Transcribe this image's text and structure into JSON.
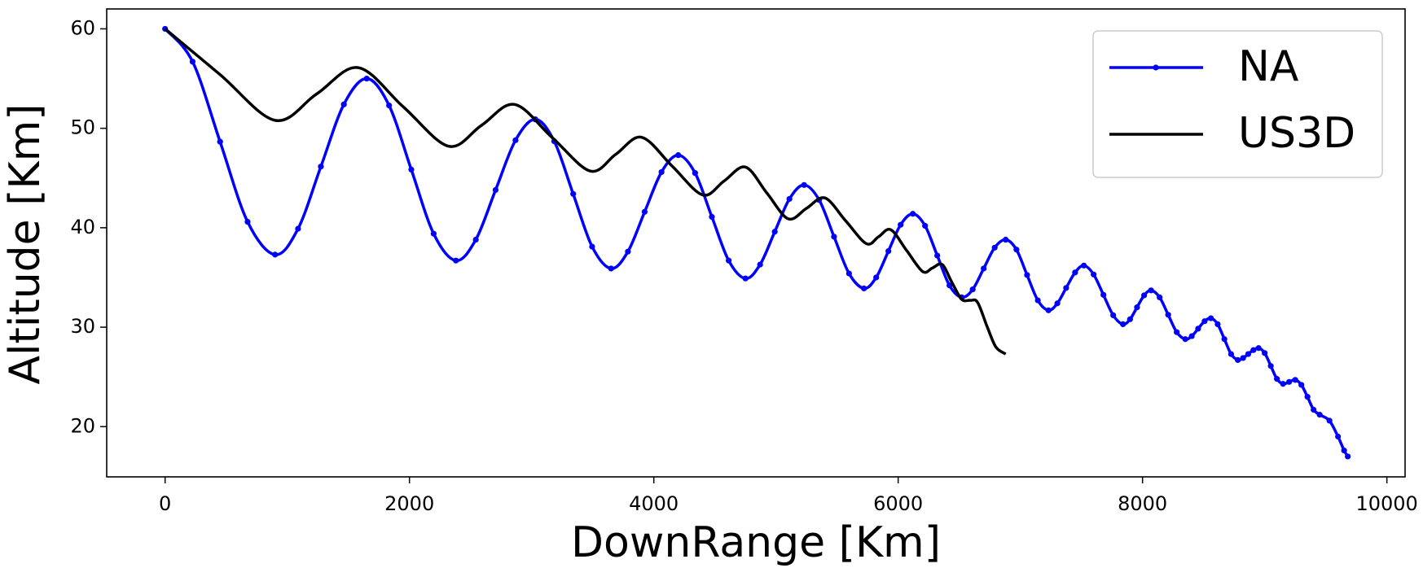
{
  "chart_data": {
    "type": "line",
    "x_label": "DownRange [Km]",
    "y_label": "Altitude [Km]",
    "xlim": [
      -478,
      10149
    ],
    "ylim": [
      14.95,
      62.0
    ],
    "xticks": [
      0,
      2000,
      4000,
      6000,
      8000,
      10000
    ],
    "yticks": [
      20,
      30,
      40,
      50,
      60
    ],
    "grid": false,
    "legend": "upper right",
    "series": [
      {
        "name": "NA",
        "color": "#0000ff",
        "markers": true,
        "x": [
          0,
          225,
          450,
          675,
          900,
          1088,
          1275,
          1463,
          1650,
          1833,
          2015,
          2198,
          2380,
          2543,
          2705,
          2868,
          3030,
          3185,
          3340,
          3495,
          3650,
          3788,
          3925,
          4063,
          4200,
          4338,
          4475,
          4613,
          4750,
          4870,
          4990,
          5110,
          5230,
          5353,
          5475,
          5598,
          5720,
          5820,
          5920,
          6020,
          6120,
          6220,
          6320,
          6420,
          6520,
          6610,
          6700,
          6790,
          6880,
          6968,
          7055,
          7143,
          7230,
          7303,
          7375,
          7448,
          7520,
          7600,
          7680,
          7760,
          7840,
          7898,
          7955,
          8013,
          8070,
          8140,
          8210,
          8280,
          8350,
          8403,
          8455,
          8508,
          8560,
          8615,
          8670,
          8725,
          8780,
          8823,
          8865,
          8908,
          8950,
          9000,
          9050,
          9100,
          9150,
          9200,
          9250,
          9300,
          9350,
          9400,
          9450,
          9530,
          9600,
          9650,
          9680
        ],
        "values": [
          60,
          56.7,
          48.65,
          40.6,
          37.3,
          39.9,
          46.15,
          52.4,
          55,
          52.3,
          45.85,
          39.4,
          36.7,
          38.8,
          43.8,
          48.8,
          50.9,
          48.7,
          43.4,
          38.1,
          35.9,
          37.6,
          41.6,
          45.6,
          47.3,
          45.5,
          41.1,
          36.7,
          34.9,
          36.3,
          39.6,
          42.9,
          44.3,
          42.8,
          39.1,
          35.4,
          33.9,
          35.0,
          37.65,
          40.3,
          41.4,
          40.2,
          37.2,
          34.2,
          33.0,
          33.8,
          35.9,
          38.0,
          38.8,
          37.8,
          35.25,
          32.7,
          31.7,
          32.4,
          33.95,
          35.5,
          36.2,
          35.3,
          33.25,
          31.2,
          30.3,
          30.8,
          32.0,
          33.2,
          33.7,
          33.0,
          31.25,
          29.5,
          28.8,
          29.1,
          29.85,
          30.6,
          30.9,
          30.3,
          28.8,
          27.3,
          26.7,
          26.9,
          27.3,
          27.7,
          27.9,
          27.4,
          26.1,
          24.8,
          24.3,
          24.5,
          24.7,
          24.2,
          23.0,
          21.7,
          21.2,
          20.6,
          19.0,
          17.6,
          17.0
        ]
      },
      {
        "name": "US3D",
        "color": "#000000",
        "markers": false,
        "x": [
          0,
          450,
          900,
          1240,
          1580,
          1950,
          2320,
          2590,
          2860,
          3170,
          3480,
          3690,
          3900,
          4150,
          4400,
          4575,
          4750,
          4925,
          5100,
          5250,
          5400,
          5570,
          5740,
          5840,
          5940,
          6070,
          6200,
          6280,
          6360,
          6440,
          6520,
          6590,
          6650,
          6730,
          6800,
          6880
        ],
        "values": [
          60,
          55.4,
          50.8,
          53.45,
          56.1,
          52.15,
          48.2,
          50.3,
          52.4,
          49.05,
          45.7,
          47.4,
          49.1,
          46.2,
          43.3,
          44.7,
          46.1,
          43.5,
          40.9,
          41.95,
          43.0,
          40.7,
          38.4,
          39.1,
          39.8,
          37.7,
          35.6,
          35.95,
          36.3,
          34.5,
          32.8,
          32.7,
          32.5,
          30.0,
          28.0,
          27.3
        ]
      }
    ]
  }
}
